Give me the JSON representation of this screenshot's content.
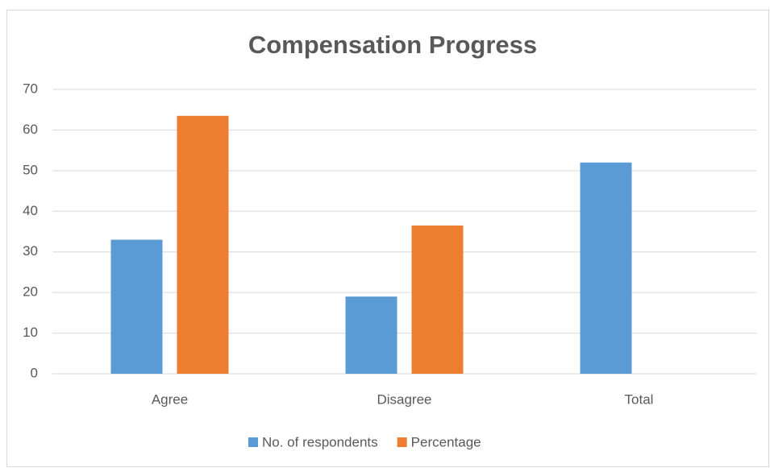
{
  "chart_data": {
    "type": "bar",
    "title": "Compensation Progress",
    "categories": [
      "Agree",
      "Disagree",
      "Total"
    ],
    "series": [
      {
        "name": "No. of respondents",
        "color": "#5b9bd5",
        "values": [
          33,
          19,
          52
        ]
      },
      {
        "name": "Percentage",
        "color": "#ed7d31",
        "values": [
          63.5,
          36.5,
          null
        ]
      }
    ],
    "ylim": [
      0,
      70
    ],
    "yticks": [
      0,
      10,
      20,
      30,
      40,
      50,
      60,
      70
    ],
    "grid": true,
    "legend": "bottom"
  }
}
